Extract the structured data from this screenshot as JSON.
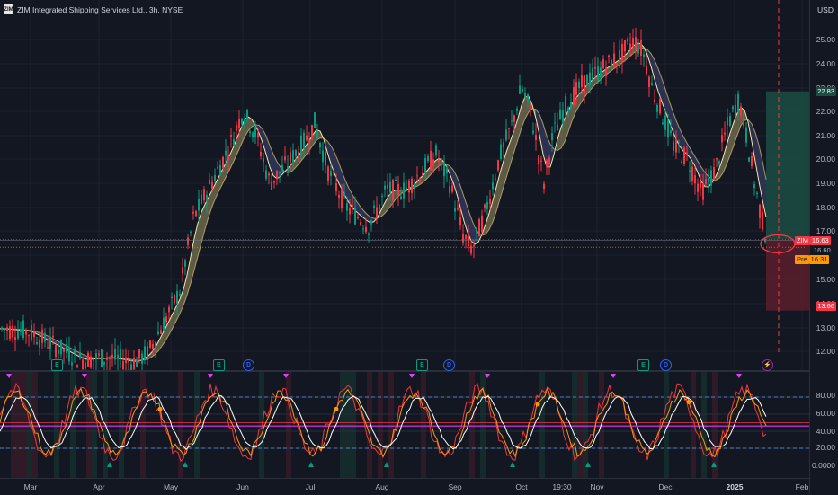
{
  "header": {
    "symbol_title": "ZIM Integrated Shipping Services Ltd., 3h, NYSE",
    "logo_text": "ZIM"
  },
  "price_axis": {
    "currency": "USD",
    "ticks": [
      "25.00",
      "24.00",
      "23.00",
      "22.00",
      "21.00",
      "20.00",
      "19.00",
      "18.00",
      "17.00",
      "16.00",
      "15.00",
      "14.00",
      "13.00",
      "12.00"
    ]
  },
  "oscillator_axis": {
    "ticks": [
      "80.00",
      "60.00",
      "40.00",
      "20.00",
      "0.0000"
    ]
  },
  "time_axis": {
    "labels": [
      "Mar",
      "Apr",
      "May",
      "Jun",
      "Jul",
      "Aug",
      "Sep",
      "Oct",
      "19:30",
      "Nov",
      "Dec",
      "2025",
      "Feb"
    ]
  },
  "price_labels": {
    "target": "22.83",
    "current_symbol": "ZIM",
    "current": "16.63",
    "level": "16.60",
    "prev_label": "Pre",
    "prev": "16.31",
    "stop": "13.66"
  },
  "badges": {
    "earnings": "E",
    "dividend": "D",
    "lightning": "⚡"
  },
  "colors": {
    "background": "#131722",
    "up": "#089981",
    "down": "#f23645",
    "ribbon_bull": "#e8d98a",
    "ribbon_bear": "#5b5fa8",
    "target_zone": "#1b4d43",
    "stop_zone": "#5a1f2a",
    "osc_orange": "#ff9800",
    "osc_red": "#f23645",
    "osc_white": "#ffffff",
    "osc_magenta": "#e040fb",
    "osc_blue_dash": "#5b9cf6"
  }
}
